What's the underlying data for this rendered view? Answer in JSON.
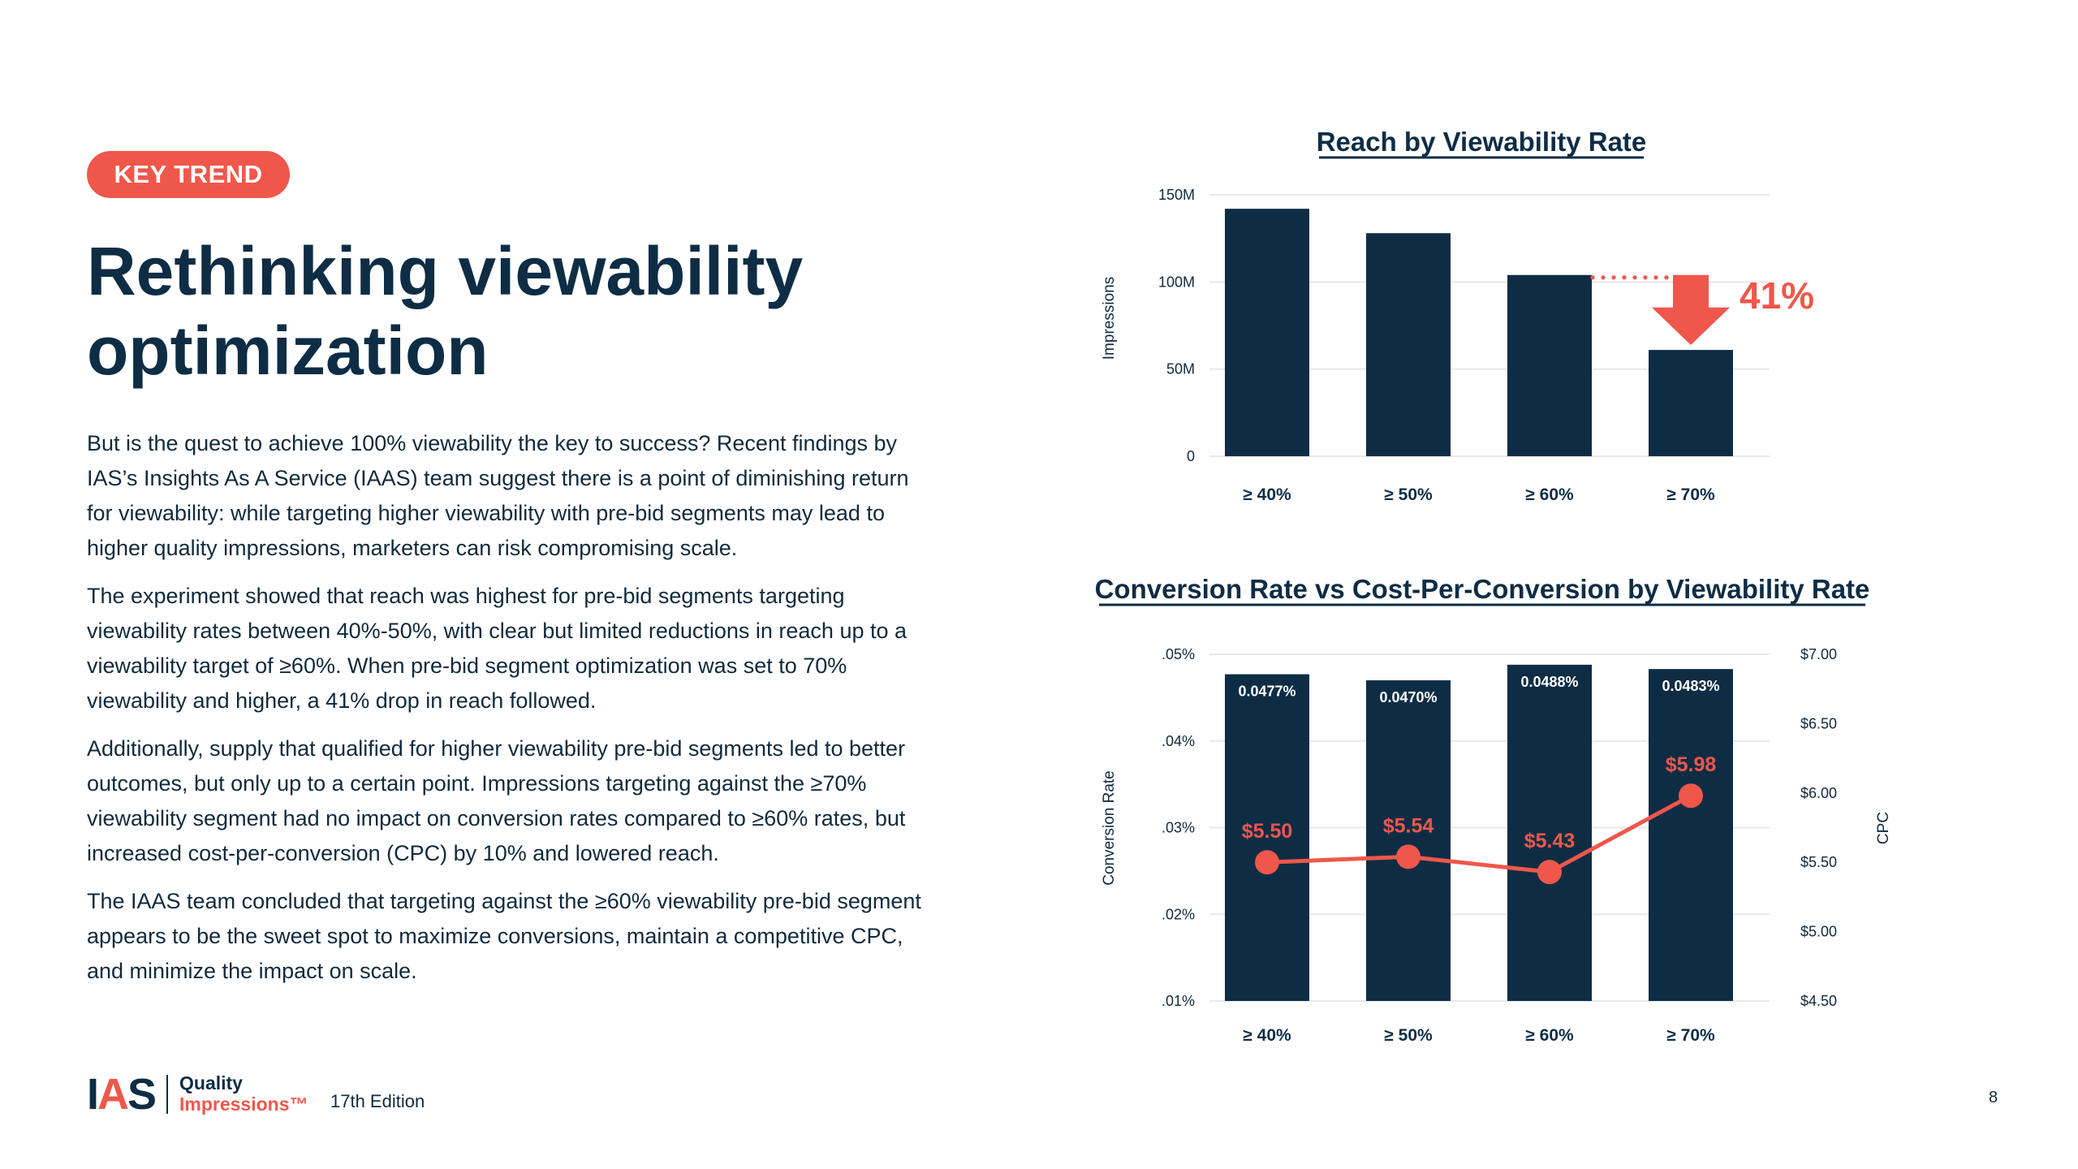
{
  "badge": "KEY TREND",
  "title_line1": "Rethinking viewability",
  "title_line2": "optimization",
  "paragraphs": [
    "But is the quest to achieve 100% viewability the key to success? Recent findings by IAS’s Insights As A Service (IAAS) team suggest there is a point of diminishing return for viewability: while targeting higher viewability with pre-bid segments may lead to higher quality impressions, marketers can risk compromising scale.",
    "The experiment showed that reach was highest for pre-bid segments targeting viewability rates between 40%-50%, with clear but limited reductions in reach up to a viewability target of ≥60%. When pre-bid segment optimization was set to 70% viewability and higher, a 41% drop in reach followed.",
    "Additionally, supply that qualified for higher viewability pre-bid segments led to better outcomes, but only up to a certain point. Impressions targeting against the ≥70% viewability segment had no impact on conversion rates compared to ≥60% rates, but increased cost-per-conversion (CPC) by 10% and lowered reach.",
    "The IAAS team concluded that targeting against the ≥60% viewability pre-bid segment appears to be the sweet spot to maximize conversions, maintain a competitive CPC, and minimize the impact on scale."
  ],
  "footer": {
    "logo_ias": "IAS",
    "logo_quality": "Quality",
    "logo_impressions": "Impressions™",
    "edition": "17th Edition",
    "page_number": "8"
  },
  "colors": {
    "navy": "#0e2d45",
    "coral": "#f0574b",
    "grid": "#e6e8eb"
  },
  "chart_data": [
    {
      "type": "bar",
      "title": "Reach by Viewability Rate",
      "categories": [
        "≥ 40%",
        "≥ 50%",
        "≥ 60%",
        "≥ 70%"
      ],
      "values": [
        142000000,
        128000000,
        104000000,
        61000000
      ],
      "ylabel": "Impressions",
      "ylim": [
        0,
        150000000
      ],
      "yticks": [
        0,
        50000000,
        100000000,
        150000000
      ],
      "ytick_labels": [
        "0",
        "50M",
        "100M",
        "150M"
      ],
      "annotation": {
        "text": "41%",
        "from_category": "≥ 60%",
        "to_category": "≥ 70%",
        "direction": "down"
      }
    },
    {
      "type": "bar+line",
      "title": "Conversion Rate vs Cost-Per-Conversion by Viewability Rate",
      "categories": [
        "≥ 40%",
        "≥ 50%",
        "≥ 60%",
        "≥ 70%"
      ],
      "series": [
        {
          "name": "Conversion Rate",
          "type": "bar",
          "axis": "left",
          "values": [
            0.0477,
            0.047,
            0.0488,
            0.0483
          ],
          "labels": [
            "0.0477%",
            "0.0470%",
            "0.0488%",
            "0.0483%"
          ]
        },
        {
          "name": "CPC",
          "type": "line",
          "axis": "right",
          "values": [
            5.5,
            5.54,
            5.43,
            5.98
          ],
          "labels": [
            "$5.50",
            "$5.54",
            "$5.43",
            "$5.98"
          ]
        }
      ],
      "ylabel": "Conversion Rate",
      "ylim": [
        0.01,
        0.05
      ],
      "yticks": [
        0.01,
        0.02,
        0.03,
        0.04,
        0.05
      ],
      "ytick_labels": [
        ".01%",
        ".02%",
        ".03%",
        ".04%",
        ".05%"
      ],
      "y2label": "CPC",
      "y2lim": [
        4.5,
        7.0
      ],
      "y2ticks": [
        4.5,
        5.0,
        5.5,
        6.0,
        6.5,
        7.0
      ],
      "y2tick_labels": [
        "$4.50",
        "$5.00",
        "$5.50",
        "$6.00",
        "$6.50",
        "$7.00"
      ]
    }
  ]
}
